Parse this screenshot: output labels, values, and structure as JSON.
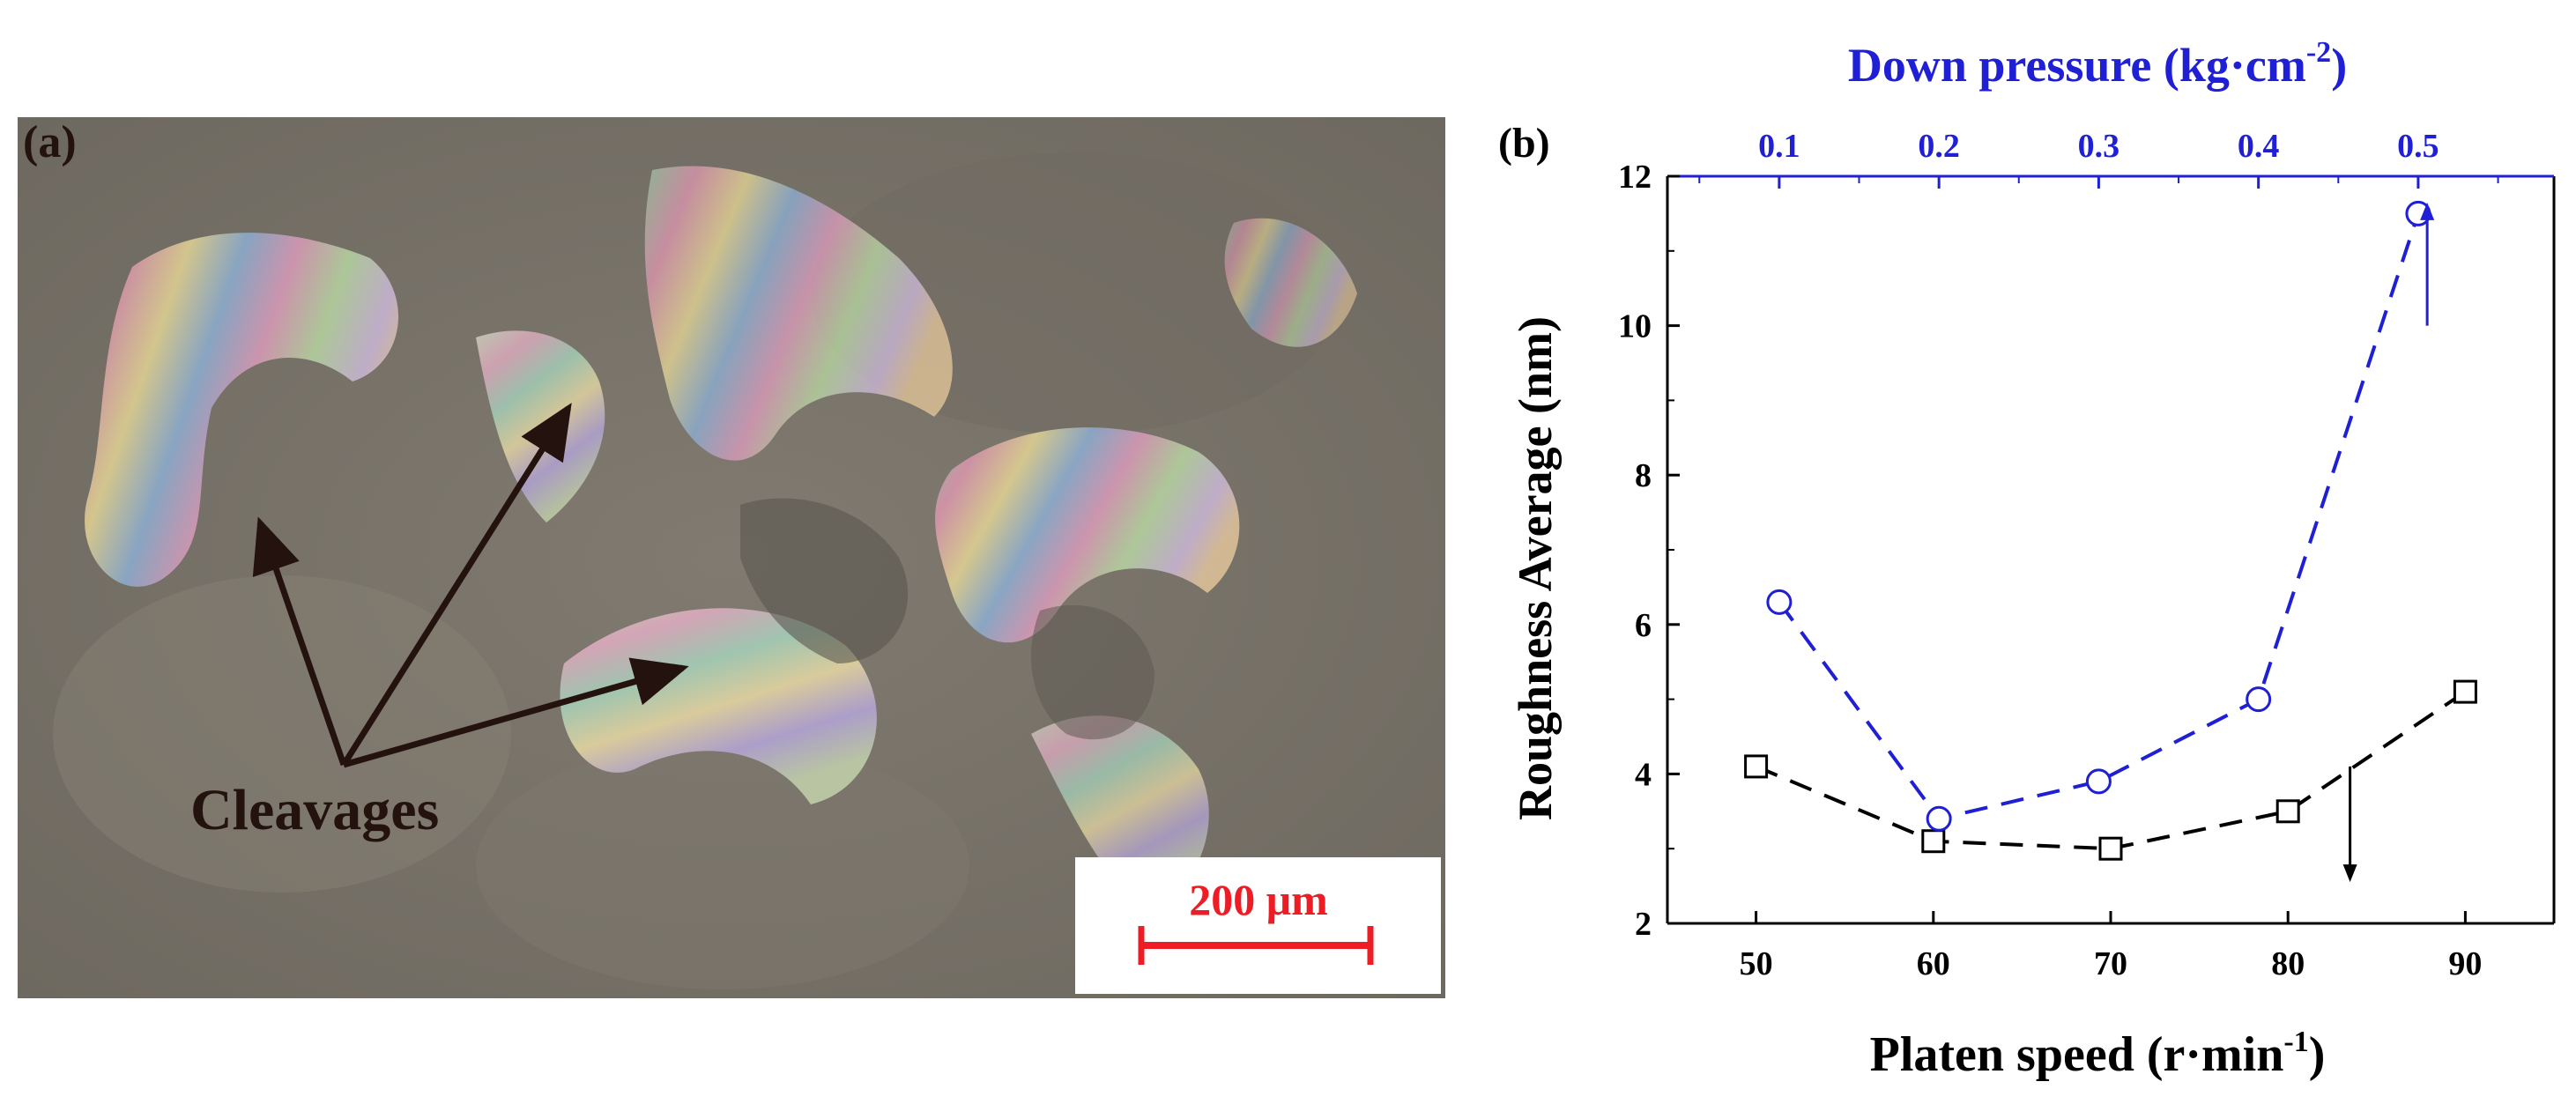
{
  "panel_a": {
    "label": "(a)",
    "annotation": "Cleavages",
    "scale_bar": "200 μm",
    "colors": {
      "arrow": "#24120f",
      "scale_bar": "#ee1c24",
      "background": "#7a746a"
    }
  },
  "chart_data": {
    "type": "line",
    "panel_label": "(b)",
    "xlabel": "Platen speed",
    "xlabel_unit_base": "(r·min",
    "xlabel_unit_exp": "-1",
    "xlabel_unit_close": ")",
    "x_top_label": "Down pressure",
    "x_top_unit_base": "(kg·cm",
    "x_top_unit_exp": "-2",
    "x_top_unit_close": ")",
    "ylabel": "Roughness Average (nm)",
    "xlim": [
      45,
      95
    ],
    "x_ticks": [
      "50",
      "60",
      "70",
      "80",
      "90"
    ],
    "x_top_lim": [
      0.03,
      0.585
    ],
    "x_top_ticks": [
      "0.1",
      "0.2",
      "0.3",
      "0.4",
      "0.5"
    ],
    "ylim": [
      2,
      12
    ],
    "y_ticks": [
      "2",
      "4",
      "6",
      "8",
      "10",
      "12"
    ],
    "series": [
      {
        "axis": "bottom",
        "marker": "square",
        "color": "#000000",
        "x": [
          50,
          60,
          70,
          80,
          90
        ],
        "y": [
          4.1,
          3.1,
          3.0,
          3.5,
          5.1
        ]
      },
      {
        "axis": "top",
        "marker": "circle",
        "color": "#1f1fd6",
        "x": [
          0.1,
          0.2,
          0.3,
          0.4,
          0.5
        ],
        "y": [
          6.3,
          3.4,
          3.9,
          5.0,
          11.5
        ]
      }
    ]
  }
}
